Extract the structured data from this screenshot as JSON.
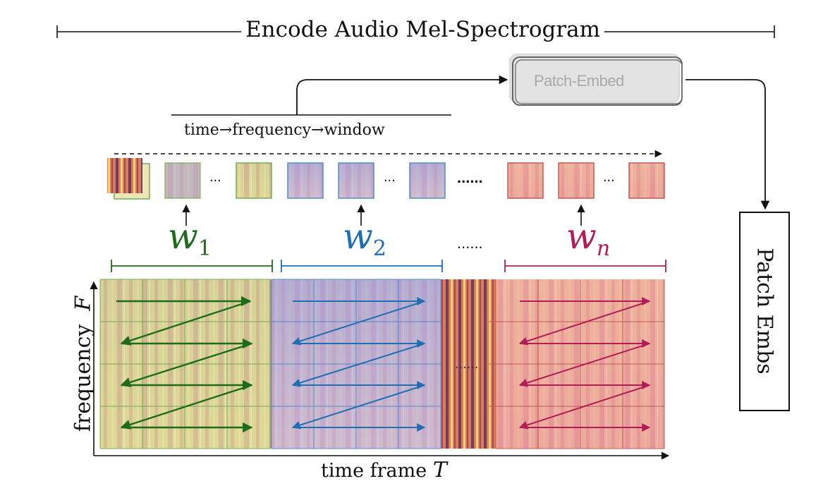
{
  "title": "Encode Audio Mel-Spectrogram",
  "order_label": "time→frequency→window",
  "patch_embed_label": "Patch-Embed",
  "patch_embs_label": "Patch Embs",
  "y_axis_label": "frequency",
  "y_axis_symbol": "F",
  "x_axis_label": "time frame",
  "x_axis_symbol": "T",
  "windows": [
    {
      "symbol": "w",
      "subscript": "1",
      "color": "#1e6b1e"
    },
    {
      "symbol": "w",
      "subscript": "2",
      "color": "#1f6fb5"
    },
    {
      "symbol": "w",
      "subscript": "n",
      "color": "#b01e55"
    }
  ],
  "ellipsis_short": "...",
  "ellipsis_long": "......",
  "colors": {
    "green": "#1e6b1e",
    "blue": "#1f6fb5",
    "red": "#b01e55",
    "ink": "#111111",
    "patch_embed_fill": "#e3e3e3"
  }
}
